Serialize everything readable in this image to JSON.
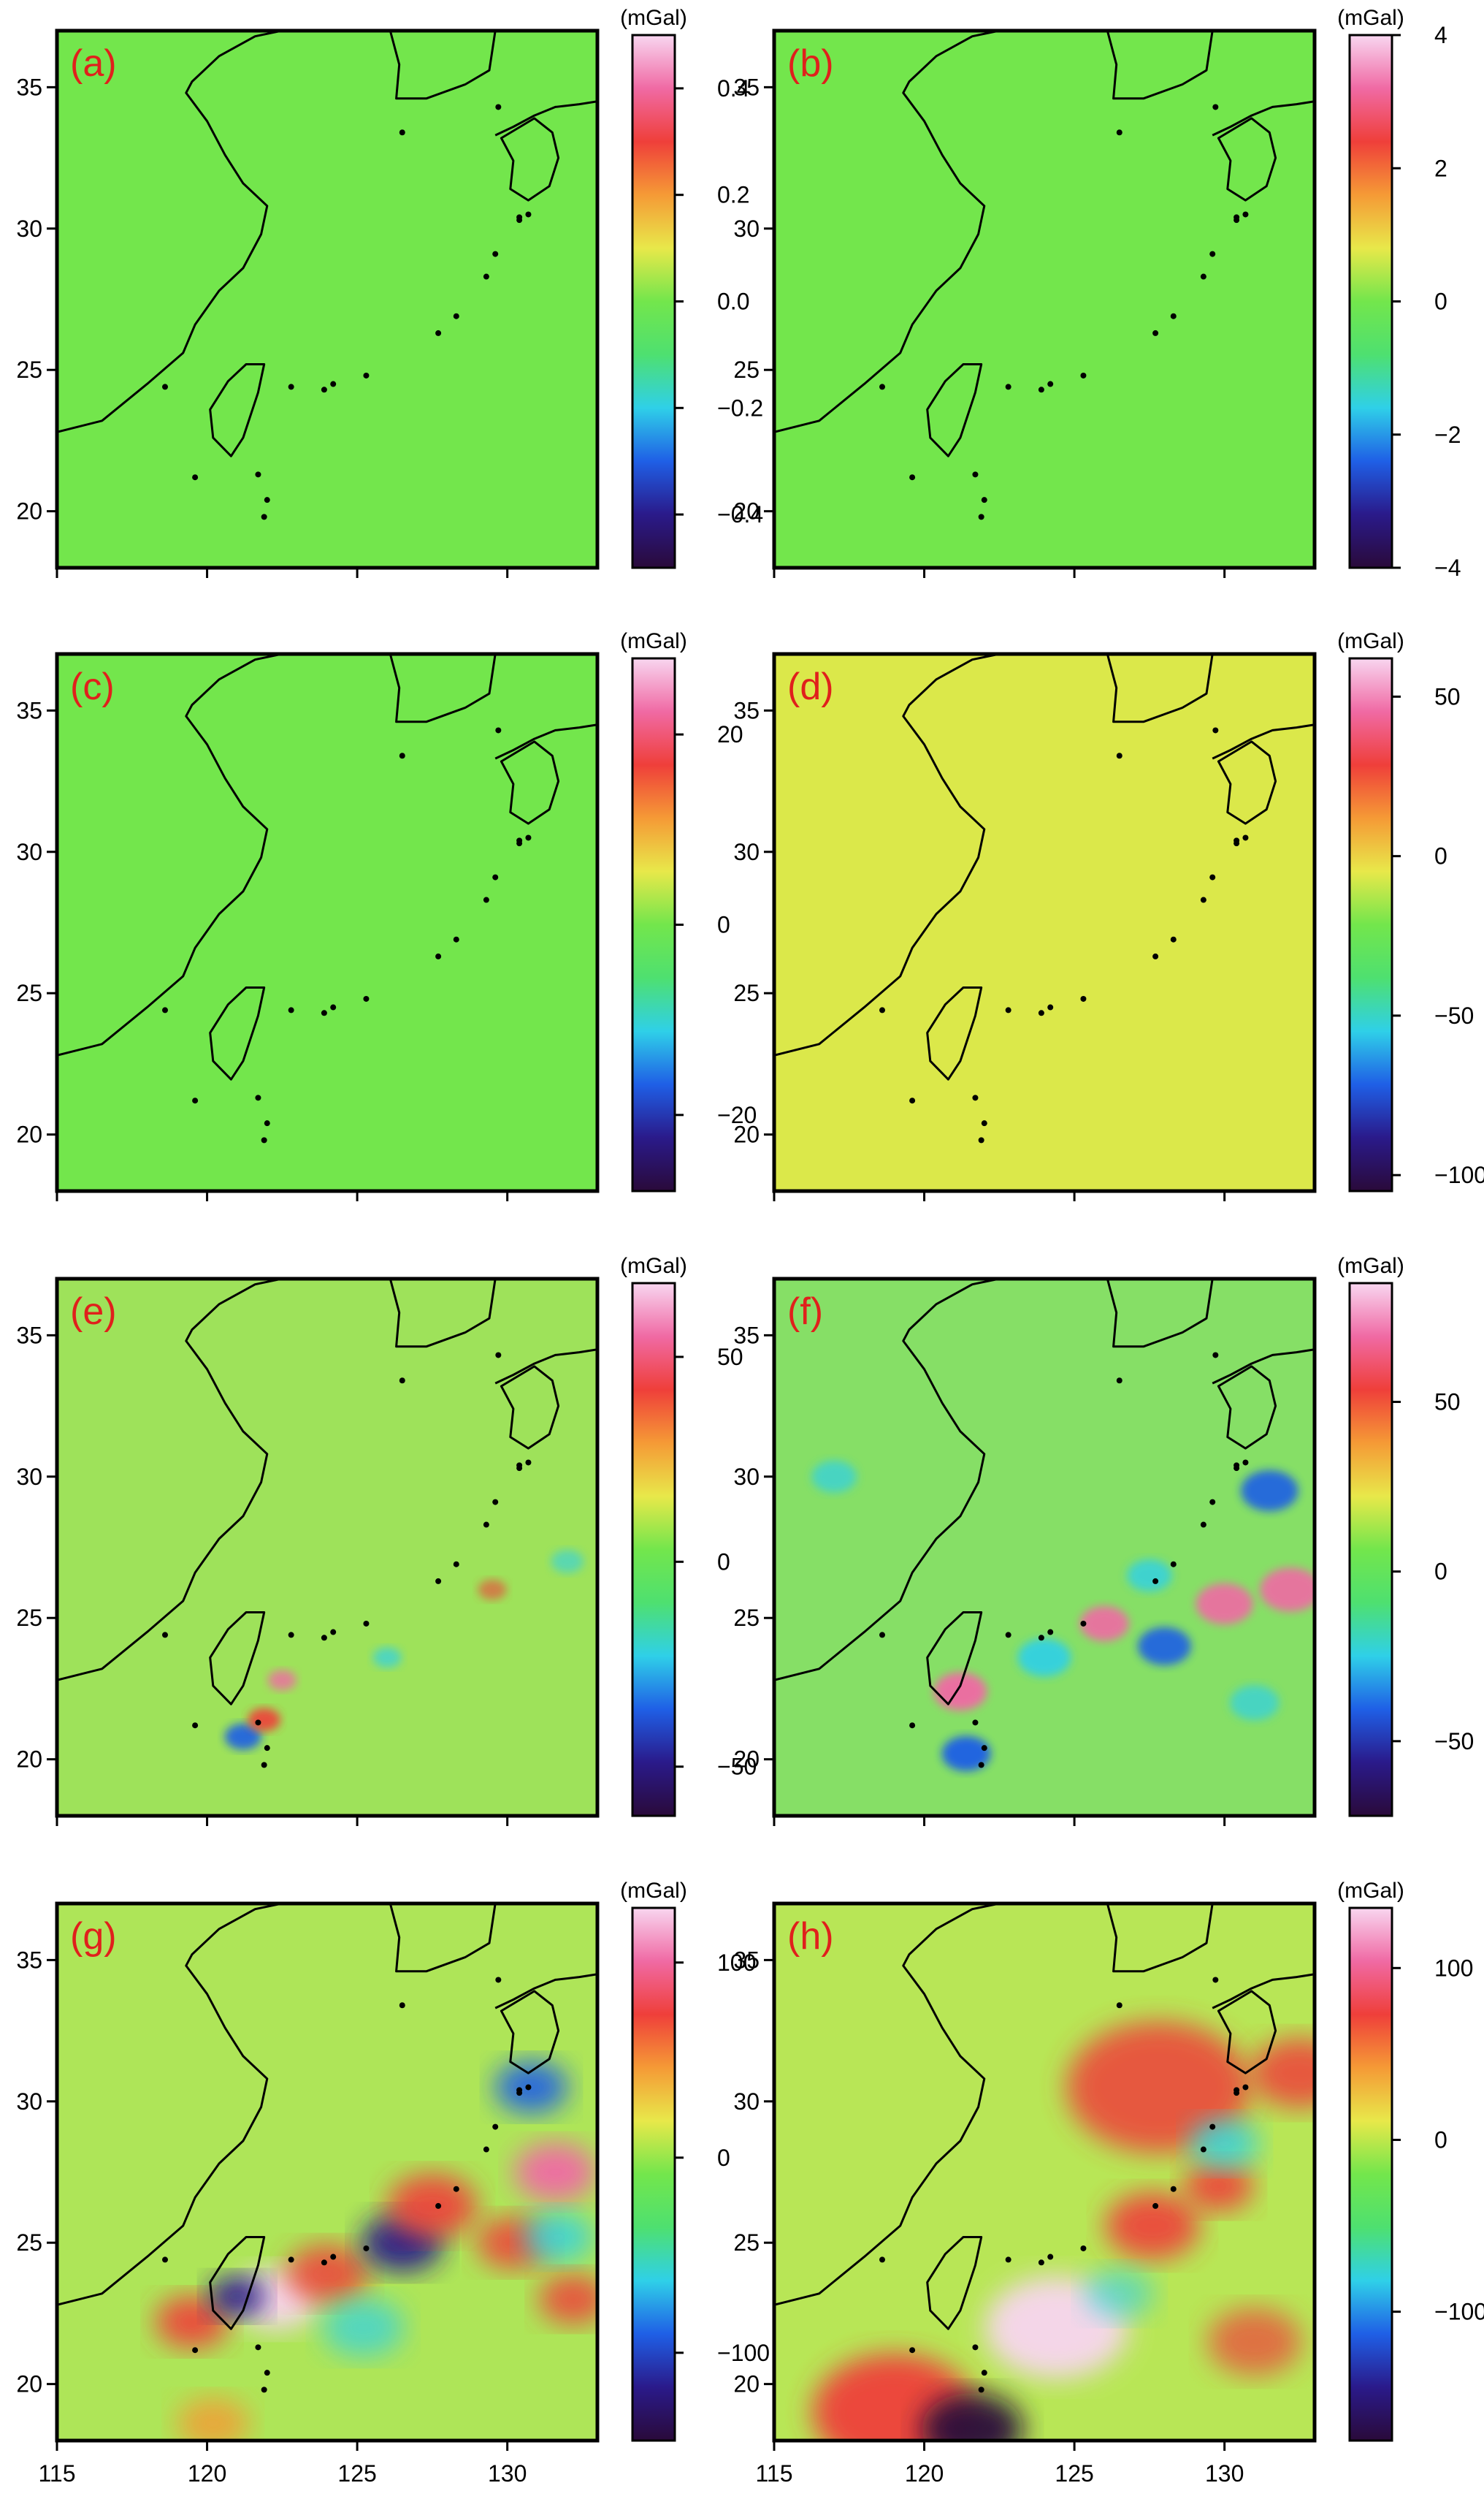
{
  "figure": {
    "unit_label": "(mGal)",
    "x_ticks": [
      115,
      120,
      125,
      130
    ],
    "y_ticks": [
      20,
      25,
      30,
      35
    ],
    "lon_range": [
      115,
      133
    ],
    "lat_range": [
      18,
      37
    ],
    "colors": {
      "frame": "#000000",
      "panel_label": "#e0201c",
      "coastline": "#000000"
    },
    "colormap": [
      "#2a0a3a",
      "#2a1a8a",
      "#1f5fe6",
      "#2fd0e8",
      "#4ee070",
      "#73e64c",
      "#e8e84a",
      "#f59a36",
      "#ef3f3a",
      "#f06aa4",
      "#f8d6f0"
    ]
  },
  "panels": [
    {
      "label": "(a)",
      "colorbar_ticks": [
        "0.4",
        "0.2",
        "0.0",
        "−0.2",
        "−0.4"
      ],
      "colorbar_range": [
        -0.5,
        0.5
      ],
      "background": "#73e64c"
    },
    {
      "label": "(b)",
      "colorbar_ticks": [
        "4",
        "2",
        "0",
        "−2",
        "−4"
      ],
      "colorbar_range": [
        -4,
        4
      ],
      "background": "#73e64c"
    },
    {
      "label": "(c)",
      "colorbar_ticks": [
        "20",
        "0",
        "−20"
      ],
      "colorbar_range": [
        -28,
        28
      ],
      "background": "#73e64c"
    },
    {
      "label": "(d)",
      "colorbar_ticks": [
        "50",
        "0",
        "−50",
        "−100"
      ],
      "colorbar_range": [
        -105,
        62
      ],
      "background": "#dbe84a"
    },
    {
      "label": "(e)",
      "colorbar_ticks": [
        "50",
        "0",
        "−50"
      ],
      "colorbar_range": [
        -62,
        68
      ],
      "background": "#9ee25a"
    },
    {
      "label": "(f)",
      "colorbar_ticks": [
        "50",
        "0",
        "−50"
      ],
      "colorbar_range": [
        -72,
        85
      ],
      "background": "#86df66"
    },
    {
      "label": "(g)",
      "colorbar_ticks": [
        "100",
        "0",
        "−100"
      ],
      "colorbar_range": [
        -145,
        128
      ],
      "background": "#aee558"
    },
    {
      "label": "(h)",
      "colorbar_ticks": [
        "100",
        "0",
        "−100"
      ],
      "colorbar_range": [
        -175,
        135
      ],
      "background": "#b8e656"
    }
  ]
}
